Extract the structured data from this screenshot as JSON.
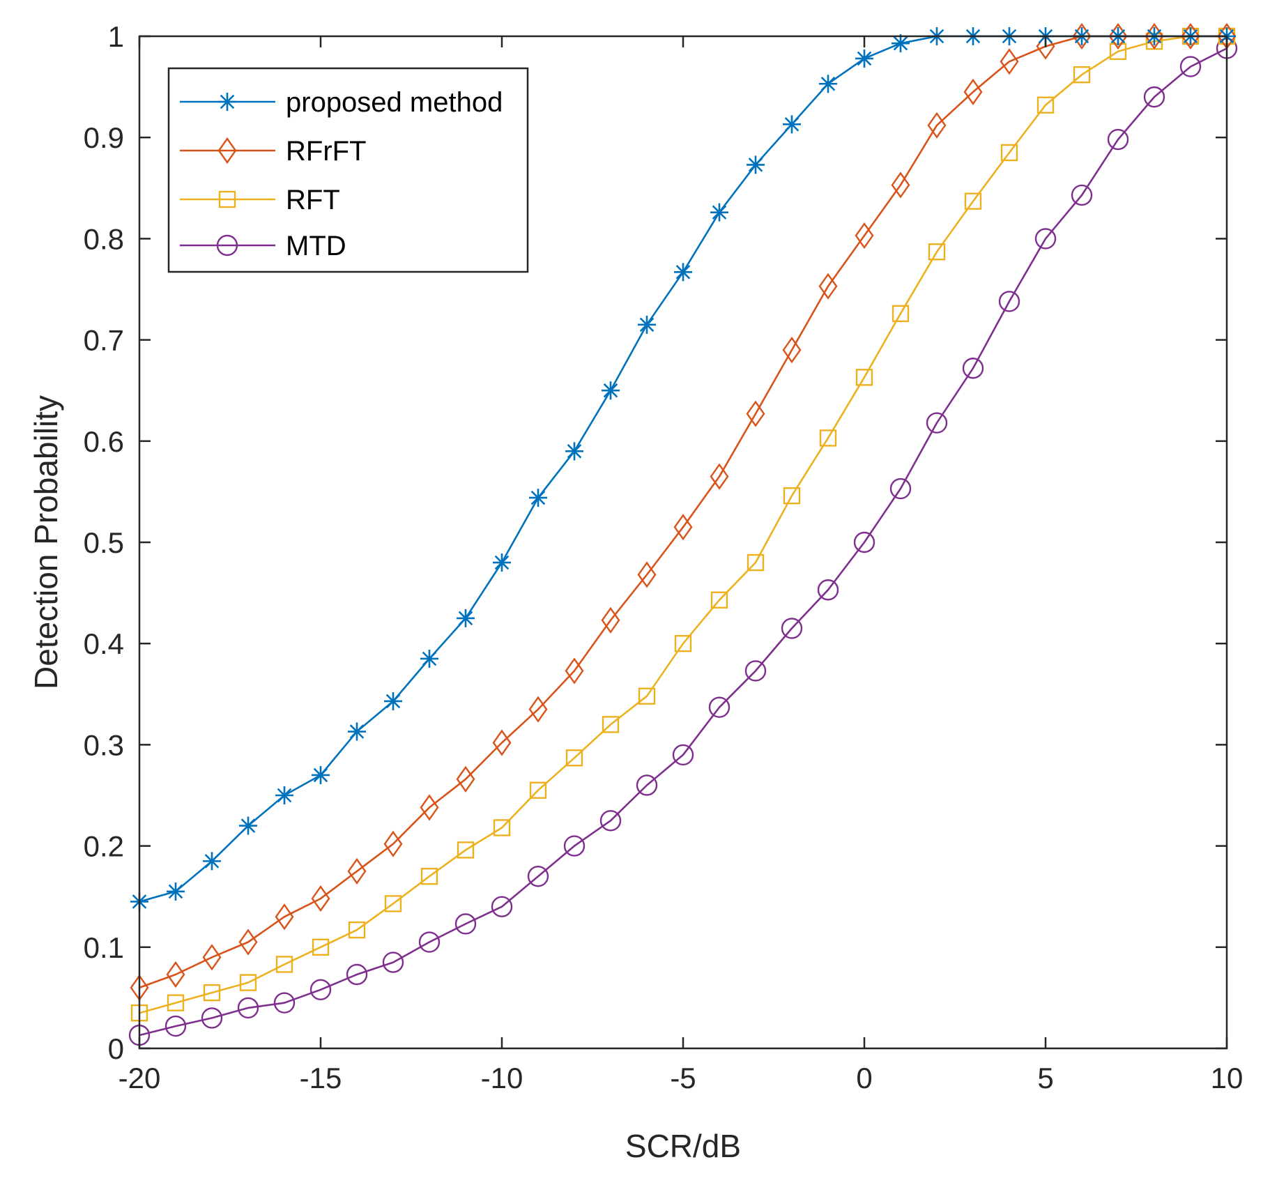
{
  "chart_data": {
    "type": "line",
    "title": "",
    "xlabel": "SCR/dB",
    "ylabel": "Detection Probability",
    "xlim": [
      -20,
      10
    ],
    "ylim": [
      0,
      1
    ],
    "xticks": [
      -20,
      -15,
      -10,
      -5,
      0,
      5,
      10
    ],
    "yticks": [
      0,
      0.1,
      0.2,
      0.3,
      0.4,
      0.5,
      0.6,
      0.7,
      0.8,
      0.9,
      1
    ],
    "xtick_labels": [
      "-20",
      "-15",
      "-10",
      "-5",
      "0",
      "5",
      "10"
    ],
    "ytick_labels": [
      "0",
      "0.1",
      "0.2",
      "0.3",
      "0.4",
      "0.5",
      "0.6",
      "0.7",
      "0.8",
      "0.9",
      "1"
    ],
    "grid": false,
    "legend_position": "top-left",
    "x": [
      -20,
      -19,
      -18,
      -17,
      -16,
      -15,
      -14,
      -13,
      -12,
      -11,
      -10,
      -9,
      -8,
      -7,
      -6,
      -5,
      -4,
      -3,
      -2,
      -1,
      0,
      1,
      2,
      3,
      4,
      5,
      6,
      7,
      8,
      9,
      10
    ],
    "series": [
      {
        "name": "proposed method",
        "color": "#0072BD",
        "marker": "asterisk",
        "values": [
          0.145,
          0.155,
          0.185,
          0.22,
          0.25,
          0.27,
          0.313,
          0.343,
          0.385,
          0.425,
          0.48,
          0.544,
          0.59,
          0.65,
          0.715,
          0.767,
          0.826,
          0.873,
          0.913,
          0.953,
          0.978,
          0.993,
          1.0,
          1.0,
          1.0,
          1.0,
          1.0,
          1.0,
          1.0,
          1.0,
          1.0
        ]
      },
      {
        "name": "RFrFT",
        "color": "#D95319",
        "marker": "diamond",
        "values": [
          0.06,
          0.073,
          0.09,
          0.105,
          0.13,
          0.148,
          0.175,
          0.202,
          0.238,
          0.266,
          0.302,
          0.335,
          0.373,
          0.423,
          0.468,
          0.515,
          0.565,
          0.627,
          0.69,
          0.753,
          0.803,
          0.853,
          0.912,
          0.945,
          0.975,
          0.99,
          1.0,
          1.0,
          1.0,
          1.0,
          1.0
        ]
      },
      {
        "name": "RFT",
        "color": "#EDB120",
        "marker": "square",
        "values": [
          0.035,
          0.045,
          0.055,
          0.065,
          0.083,
          0.1,
          0.117,
          0.143,
          0.17,
          0.196,
          0.218,
          0.255,
          0.287,
          0.32,
          0.348,
          0.4,
          0.443,
          0.48,
          0.546,
          0.603,
          0.663,
          0.726,
          0.787,
          0.837,
          0.885,
          0.932,
          0.962,
          0.985,
          0.995,
          1.0,
          1.0
        ]
      },
      {
        "name": "MTD",
        "color": "#7E2F8E",
        "marker": "circle",
        "values": [
          0.013,
          0.022,
          0.03,
          0.04,
          0.045,
          0.058,
          0.073,
          0.085,
          0.105,
          0.123,
          0.14,
          0.17,
          0.2,
          0.225,
          0.26,
          0.29,
          0.337,
          0.373,
          0.415,
          0.453,
          0.5,
          0.553,
          0.618,
          0.672,
          0.738,
          0.8,
          0.843,
          0.898,
          0.94,
          0.97,
          0.988
        ]
      }
    ]
  }
}
